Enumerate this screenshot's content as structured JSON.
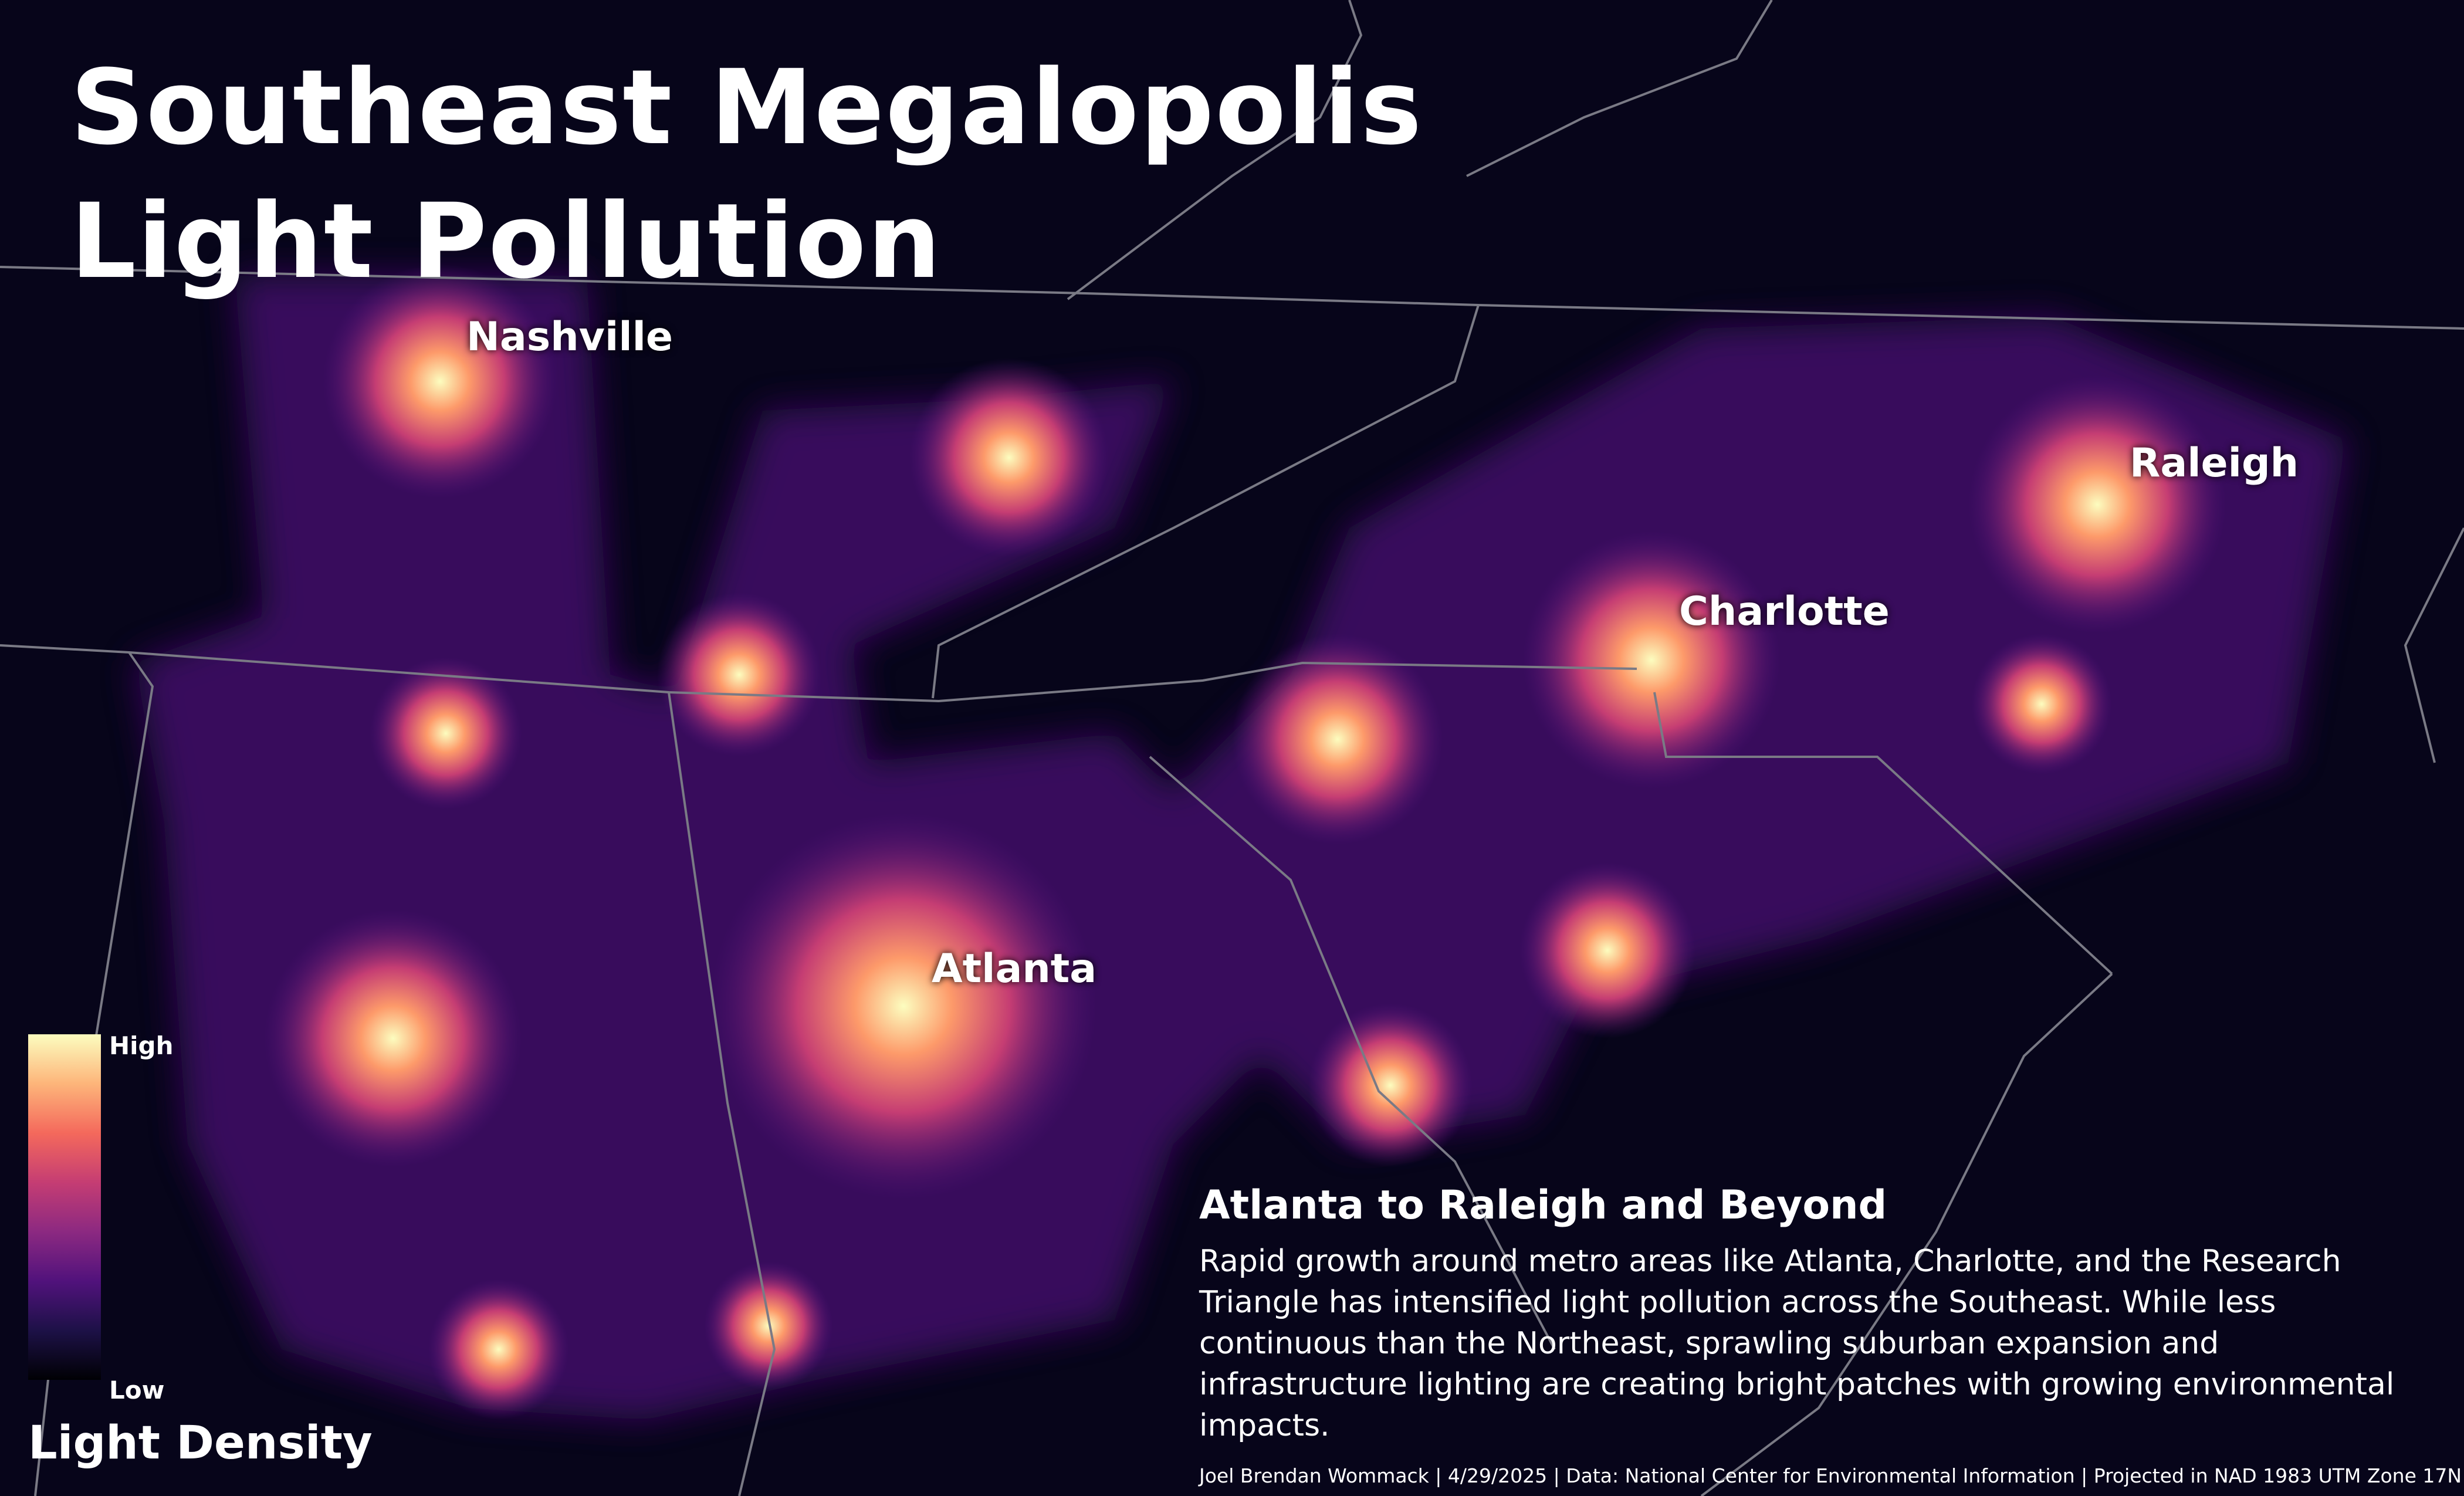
{
  "header": {
    "title": "Southeast Megalopolis Light Pollution"
  },
  "cities": [
    {
      "label": "Nashville"
    },
    {
      "label": "Raleigh"
    },
    {
      "label": "Charlotte"
    },
    {
      "label": "Atlanta"
    }
  ],
  "legend": {
    "title": "Light Density",
    "high": "High",
    "low": "Low"
  },
  "description": {
    "heading": "Atlanta to Raleigh and Beyond",
    "body": "Rapid growth around metro areas like Atlanta, Charlotte, and the Research Triangle has intensified light pollution across the Southeast. While less continuous than the Northeast, sprawling suburban expansion and infrastructure lighting are creating bright patches with growing environmental impacts."
  },
  "credits": "Joel Brendan Wommack | 4/29/2025 | Data: National Center for Environmental Information | Projected in NAD 1983 UTM Zone 17N"
}
